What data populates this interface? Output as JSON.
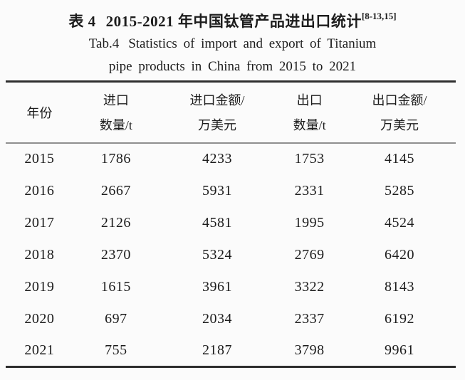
{
  "caption": {
    "zh_label": "表 4",
    "zh_title": "2015-2021 年中国钛管产品进出口统计",
    "reference": "[8-13,15]",
    "en_label": "Tab.4",
    "en_line1": "Statistics of import and export of Titanium",
    "en_line2": "pipe products in China from 2015 to 2021"
  },
  "table": {
    "columns": [
      {
        "key": "year",
        "line1": "年份",
        "line2": ""
      },
      {
        "key": "import-qty",
        "line1": "进口",
        "line2": "数量/t"
      },
      {
        "key": "import-value",
        "line1": "进口金额/",
        "line2": "万美元"
      },
      {
        "key": "export-qty",
        "line1": "出口",
        "line2": "数量/t"
      },
      {
        "key": "export-value",
        "line1": "出口金额/",
        "line2": "万美元"
      }
    ],
    "rows": [
      [
        "2015",
        "1786",
        "4233",
        "1753",
        "4145"
      ],
      [
        "2016",
        "2667",
        "5931",
        "2331",
        "5285"
      ],
      [
        "2017",
        "2126",
        "4581",
        "1995",
        "4524"
      ],
      [
        "2018",
        "2370",
        "5324",
        "2769",
        "6420"
      ],
      [
        "2019",
        "1615",
        "3961",
        "3322",
        "8143"
      ],
      [
        "2020",
        "697",
        "2034",
        "2337",
        "6192"
      ],
      [
        "2021",
        "755",
        "2187",
        "3798",
        "9961"
      ]
    ]
  },
  "colors": {
    "text": "#1c1c1c",
    "background": "#fbfbfb",
    "rule_dark": "#2e2e2e",
    "rule_light": "#8f8f8f"
  }
}
